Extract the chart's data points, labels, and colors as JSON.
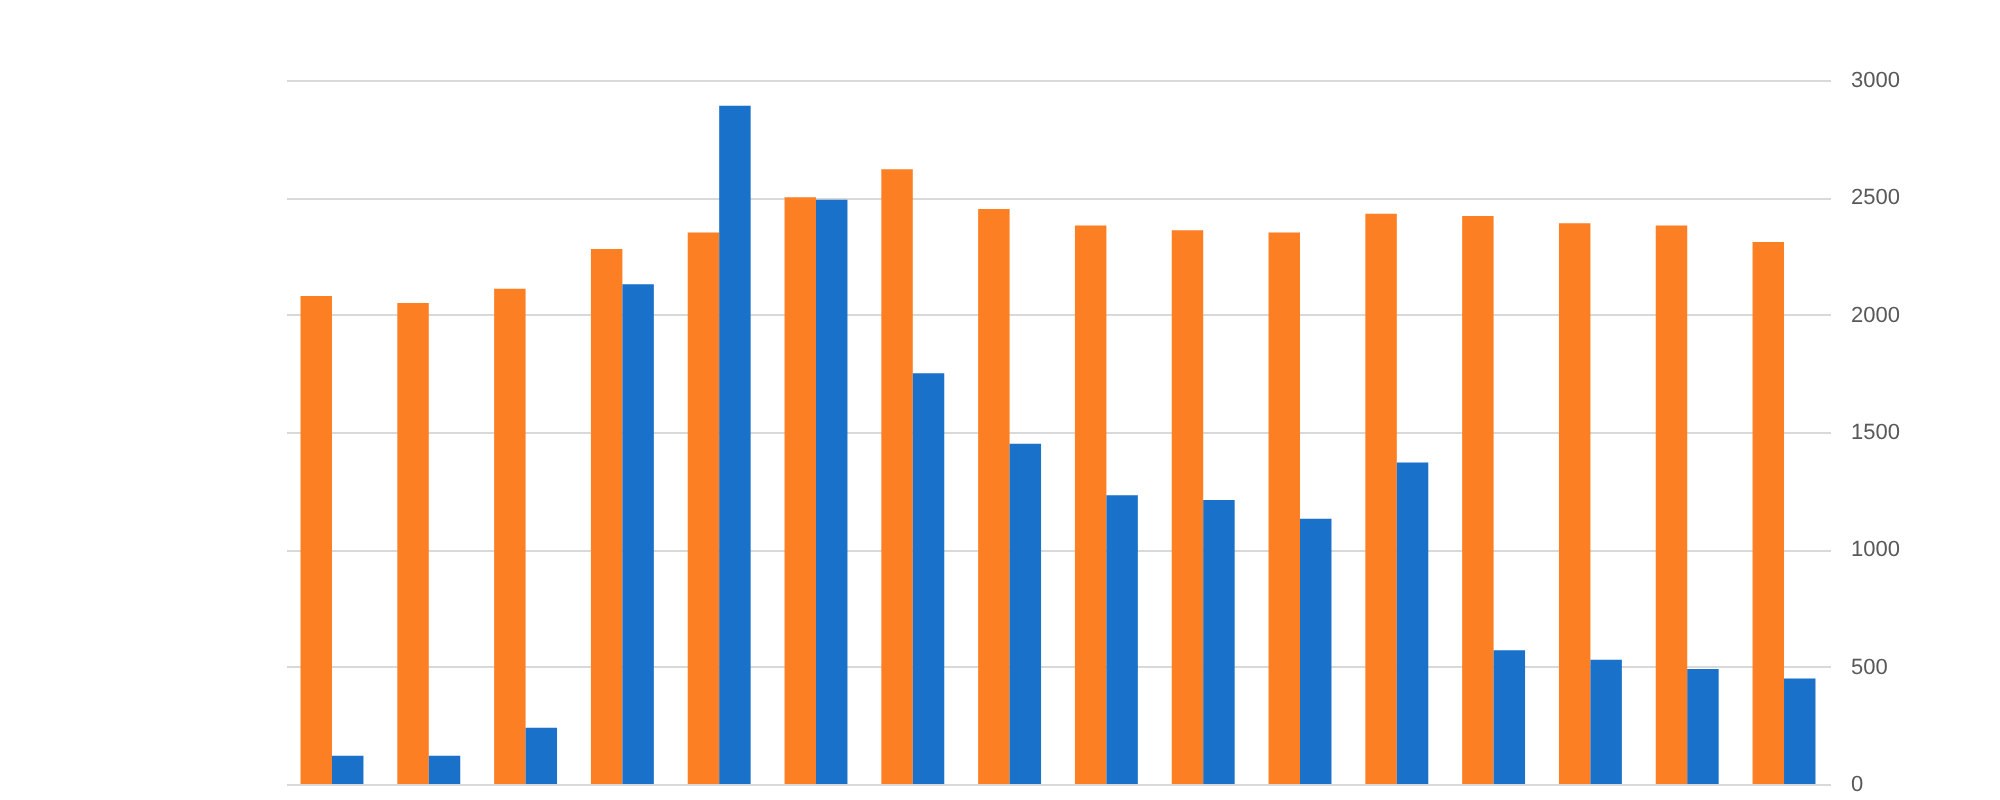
{
  "chart_data": {
    "type": "bar",
    "categories": [
      null,
      null,
      null,
      null,
      null,
      null,
      null,
      null,
      null,
      null,
      null,
      null,
      null,
      null,
      null,
      null
    ],
    "series": [
      {
        "color": "#fd7f23",
        "values": [
          2080,
          2050,
          2110,
          2280,
          2350,
          2500,
          2620,
          2450,
          2380,
          2360,
          2350,
          2430,
          2420,
          2390,
          2380,
          2310
        ]
      },
      {
        "color": "#1a71c9",
        "values": [
          120,
          120,
          240,
          2130,
          2890,
          2490,
          1750,
          1450,
          1230,
          1210,
          1130,
          1370,
          570,
          530,
          490,
          450
        ]
      }
    ],
    "ylim": [
      0,
      3000
    ],
    "yticks": [
      0,
      500,
      1000,
      1500,
      2000,
      2500,
      3000
    ],
    "grid": "y",
    "tick_labels": "y",
    "legend": false
  }
}
